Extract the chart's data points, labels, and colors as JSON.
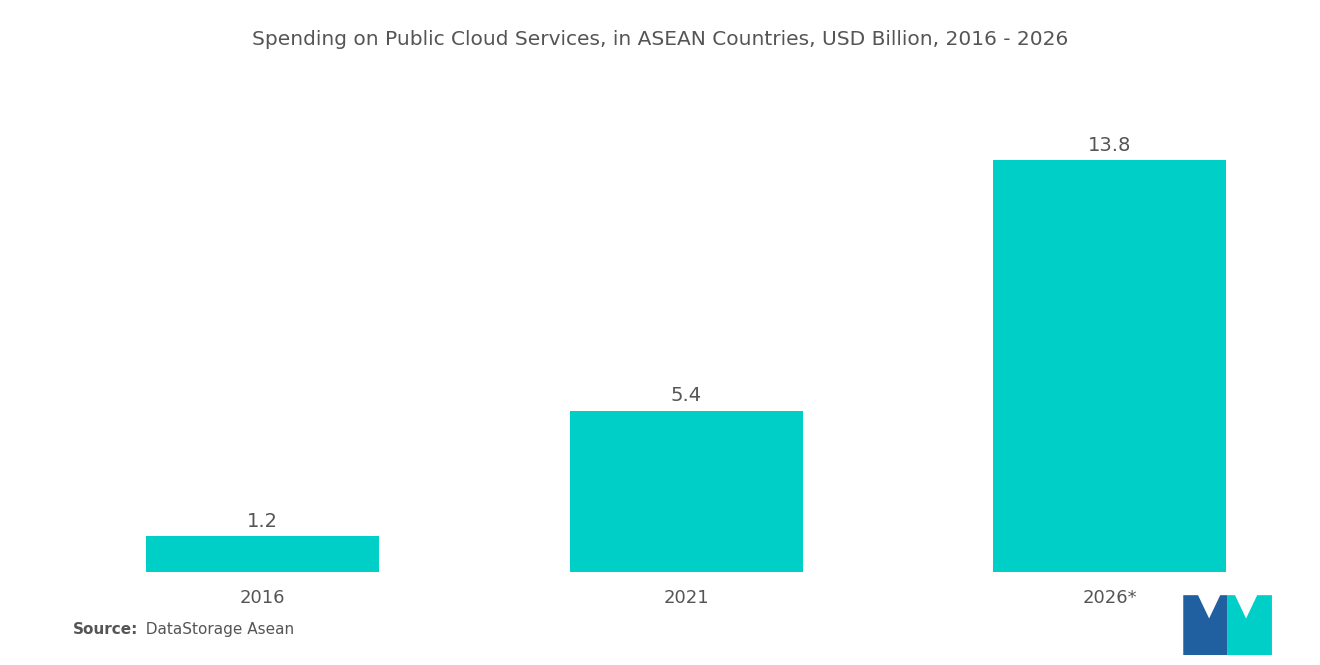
{
  "title": "Spending on Public Cloud Services, in ASEAN Countries, USD Billion, 2016 - 2026",
  "categories": [
    "2016",
    "2021",
    "2026*"
  ],
  "values": [
    1.2,
    5.4,
    13.8
  ],
  "bar_color": "#00CFC8",
  "bar_width": 0.55,
  "value_labels": [
    "1.2",
    "5.4",
    "13.8"
  ],
  "source_label_bold": "Source:",
  "source_label_normal": "  DataStorage Asean",
  "ylim": [
    0,
    16.5
  ],
  "background_color": "#FFFFFF",
  "title_fontsize": 14.5,
  "label_fontsize": 14,
  "tick_fontsize": 13,
  "source_fontsize": 11,
  "text_color": "#555555",
  "logo_left_color": "#2060A0",
  "logo_right_color": "#00CFC8"
}
